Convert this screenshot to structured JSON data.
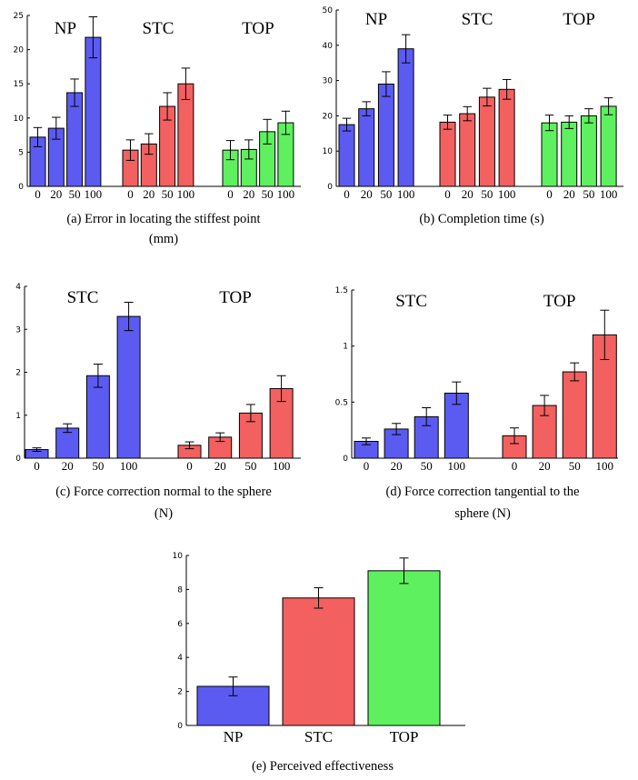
{
  "colors": {
    "NP": "#5b5bf2",
    "STC": "#f26060",
    "TOP": "#5ef05e"
  },
  "chart_data": [
    {
      "id": "a",
      "type": "bar",
      "caption": [
        "(a) Error in locating the stiffest point",
        "(mm)"
      ],
      "ylim": [
        0,
        25
      ],
      "yticks": [
        "0",
        "5",
        "10",
        "15",
        "20",
        "25"
      ],
      "tick_values": [
        0,
        5,
        10,
        15,
        20,
        25
      ],
      "groups": [
        {
          "label": "NP",
          "color_key": "NP",
          "categories": [
            "0",
            "20",
            "50",
            "100"
          ],
          "values": [
            7.2,
            8.5,
            13.7,
            21.8
          ],
          "errors": [
            1.4,
            1.6,
            2.0,
            3.0
          ]
        },
        {
          "label": "STC",
          "color_key": "STC",
          "categories": [
            "0",
            "20",
            "50",
            "100"
          ],
          "values": [
            5.3,
            6.2,
            11.7,
            15.0
          ],
          "errors": [
            1.5,
            1.5,
            2.0,
            2.3
          ]
        },
        {
          "label": "TOP",
          "color_key": "TOP",
          "categories": [
            "0",
            "20",
            "50",
            "100"
          ],
          "values": [
            5.3,
            5.4,
            8.0,
            9.3
          ],
          "errors": [
            1.4,
            1.4,
            1.8,
            1.7
          ]
        }
      ]
    },
    {
      "id": "b",
      "type": "bar",
      "caption": [
        "(b) Completion time (s)"
      ],
      "ylim": [
        0,
        50
      ],
      "yticks": [
        "0",
        "10",
        "20",
        "30",
        "40",
        "50"
      ],
      "tick_values": [
        0,
        10,
        20,
        30,
        40,
        50
      ],
      "groups": [
        {
          "label": "NP",
          "color_key": "NP",
          "categories": [
            "0",
            "20",
            "50",
            "100"
          ],
          "values": [
            17.5,
            22.0,
            29.0,
            39.0
          ],
          "errors": [
            1.8,
            2.0,
            3.5,
            4.0
          ]
        },
        {
          "label": "STC",
          "color_key": "STC",
          "categories": [
            "0",
            "20",
            "50",
            "100"
          ],
          "values": [
            18.2,
            20.6,
            25.3,
            27.5
          ],
          "errors": [
            2.0,
            2.0,
            2.5,
            2.8
          ]
        },
        {
          "label": "TOP",
          "color_key": "TOP",
          "categories": [
            "0",
            "20",
            "50",
            "100"
          ],
          "values": [
            18.0,
            18.2,
            20.0,
            22.7
          ],
          "errors": [
            2.2,
            1.8,
            2.0,
            2.4
          ]
        }
      ]
    },
    {
      "id": "c",
      "type": "bar",
      "caption": [
        "(c) Force correction normal to the sphere",
        "(N)"
      ],
      "ylim": [
        0,
        4
      ],
      "yticks": [
        "0",
        "1",
        "2",
        "3",
        "4"
      ],
      "tick_values": [
        0,
        1,
        2,
        3,
        4
      ],
      "groups": [
        {
          "label": "STC",
          "color_key": "NP",
          "categories": [
            "0",
            "20",
            "50",
            "100"
          ],
          "values": [
            0.2,
            0.7,
            1.92,
            3.3
          ],
          "errors": [
            0.04,
            0.1,
            0.27,
            0.33
          ]
        },
        {
          "label": "TOP",
          "color_key": "STC",
          "categories": [
            "0",
            "20",
            "50",
            "100"
          ],
          "values": [
            0.3,
            0.49,
            1.05,
            1.62
          ],
          "errors": [
            0.08,
            0.1,
            0.2,
            0.3
          ]
        }
      ]
    },
    {
      "id": "d",
      "type": "bar",
      "caption": [
        "(d) Force correction tangential to the",
        "sphere (N)"
      ],
      "ylim": [
        0,
        1.5
      ],
      "yticks": [
        "0",
        "0.5",
        "1",
        "1.5"
      ],
      "tick_values": [
        0,
        0.5,
        1,
        1.5
      ],
      "groups": [
        {
          "label": "STC",
          "color_key": "NP",
          "categories": [
            "0",
            "20",
            "50",
            "100"
          ],
          "values": [
            0.15,
            0.26,
            0.37,
            0.58
          ],
          "errors": [
            0.03,
            0.05,
            0.08,
            0.1
          ]
        },
        {
          "label": "TOP",
          "color_key": "STC",
          "categories": [
            "0",
            "20",
            "50",
            "100"
          ],
          "values": [
            0.2,
            0.47,
            0.77,
            1.1
          ],
          "errors": [
            0.07,
            0.09,
            0.08,
            0.22
          ]
        }
      ]
    },
    {
      "id": "e",
      "type": "bar",
      "caption": [
        "(e) Perceived effectiveness"
      ],
      "ylim": [
        0,
        10
      ],
      "yticks": [
        "0",
        "2",
        "4",
        "6",
        "8",
        "10"
      ],
      "tick_values": [
        0,
        2,
        4,
        6,
        8,
        10
      ],
      "categories": [
        "NP",
        "STC",
        "TOP"
      ],
      "values": [
        2.3,
        7.5,
        9.1
      ],
      "errors": [
        0.55,
        0.6,
        0.75
      ],
      "color_keys": [
        "NP",
        "STC",
        "TOP"
      ]
    }
  ]
}
